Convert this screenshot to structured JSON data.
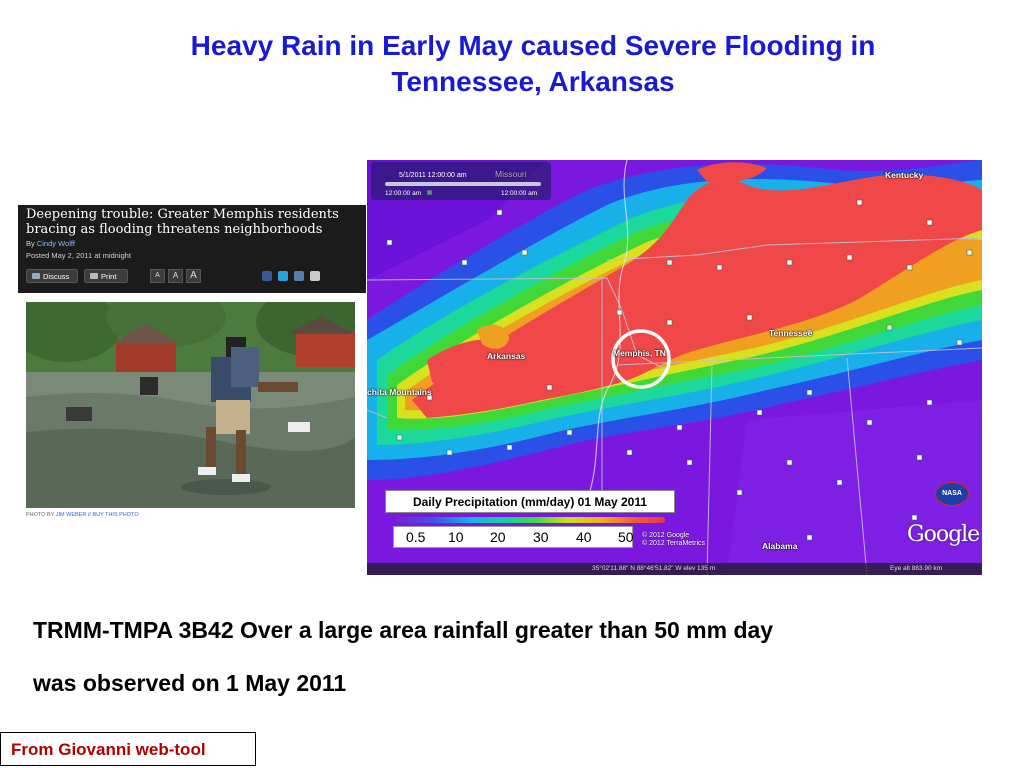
{
  "title": {
    "line1": "Heavy Rain in Early May caused Severe Flooding in",
    "line2": "Tennessee, Arkansas"
  },
  "news": {
    "headline": "Deepening trouble: Greater Memphis residents bracing as flooding threatens neighborhoods",
    "by_prefix": "By ",
    "author": "Cindy Wolff",
    "posted": "Posted May 2, 2011 at midnight",
    "discuss_label": "Discuss",
    "print_label": "Print",
    "text_sizes": [
      "A",
      "A",
      "A"
    ],
    "photo_credit_prefix": "PHOTO BY ",
    "photo_credit_name": "JIM WEBER",
    "photo_credit_buy": " // BUY THIS PHOTO",
    "icons": [
      "discuss-icon",
      "print-icon",
      "facebook-icon",
      "twitter-icon",
      "email-icon"
    ]
  },
  "map": {
    "time_label": "5/1/2011  12:00:00 am",
    "time_start": "12:00:00 am",
    "time_end": "12:00:00 am",
    "top_label": "Missouri",
    "labels": {
      "kentucky": "Kentucky",
      "tennessee": "Tennessee",
      "arkansas": "Arkansas",
      "memphis": "Memphis, TN",
      "ouachita": "chita Mountains",
      "alabama": "Alabama"
    },
    "legend_title": "Daily Precipitation (mm/day) 01 May 2011",
    "legend_values": [
      "0.5",
      "10",
      "20",
      "30",
      "40",
      "50"
    ],
    "copyright_line1": "© 2012 Google",
    "copyright_line2": "© 2012 TerraMetrics",
    "nasa_label": "NASA",
    "google_label": "Google",
    "status_coords": "35°02'11.88\" N  88°46'51.82\" W elev  135 m",
    "status_eye": "Eye alt   883.90 km"
  },
  "caption": {
    "line1": "TRMM-TMPA 3B42  Over a large area rainfall greater than 50 mm day",
    "line2": "was observed on 1 May 2011"
  },
  "source": "From Giovanni web-tool"
}
